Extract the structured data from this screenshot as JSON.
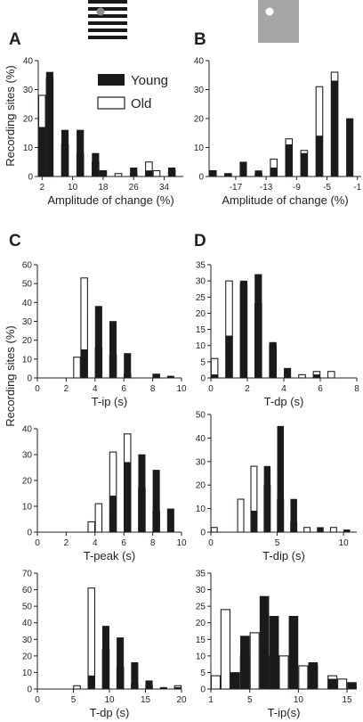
{
  "figure": {
    "shared_ylabel_top": "Recording sites (%)",
    "shared_ylabel_bottom": "Recording sites (%)",
    "legend": {
      "young": "Young",
      "old": "Old"
    },
    "colors": {
      "young": "#1a1a1a",
      "old": "#ffffff",
      "axis": "#231f20",
      "stimulus_gray": "#a6a6a6"
    },
    "stimuli": {
      "A": "black and white horizontal grating with gray dot",
      "B": "gray square with white dot"
    }
  },
  "chart_data": [
    {
      "id": "A",
      "panel_label": "A",
      "type": "bar",
      "xlabel": "Amplitude of change (%)",
      "xticks": [
        "2",
        "10",
        "18",
        "26",
        "34"
      ],
      "ylim": [
        0,
        40
      ],
      "yticks": [
        "0",
        "10",
        "20",
        "30",
        "40"
      ],
      "categories": [
        "2",
        "4",
        "6",
        "8",
        "10",
        "12",
        "14",
        "16",
        "18",
        "20",
        "22",
        "24",
        "26",
        "28",
        "30",
        "32",
        "34",
        "36",
        "38"
      ],
      "series": [
        {
          "name": "Old",
          "values": [
            28,
            34,
            0,
            11,
            0,
            8,
            0,
            5,
            2,
            0,
            1,
            0,
            1,
            0,
            5,
            2,
            0,
            2,
            0
          ]
        },
        {
          "name": "Young",
          "values": [
            17,
            36,
            0,
            16,
            0,
            16,
            0,
            8,
            2,
            0,
            0,
            0,
            3,
            0,
            2,
            0,
            0,
            3,
            0
          ]
        }
      ]
    },
    {
      "id": "B",
      "panel_label": "B",
      "type": "bar",
      "xlabel": "Amplitude of change (%)",
      "xticks": [
        "-17",
        "-13",
        "-9",
        "-5",
        "-1"
      ],
      "ylim": [
        0,
        40
      ],
      "yticks": [
        "0",
        "10",
        "20",
        "30",
        "40"
      ],
      "categories": [
        "-20",
        "-19",
        "-18",
        "-17",
        "-16",
        "-15",
        "-14",
        "-13",
        "-12",
        "-11",
        "-10",
        "-9",
        "-8",
        "-7",
        "-6",
        "-5",
        "-4",
        "-3",
        "-2",
        "-1"
      ],
      "series": [
        {
          "name": "Old",
          "values": [
            2,
            0,
            1,
            0,
            0,
            0,
            1,
            0,
            6,
            0,
            13,
            0,
            9,
            0,
            31,
            0,
            36,
            0,
            0,
            0
          ]
        },
        {
          "name": "Young",
          "values": [
            2,
            0,
            1,
            0,
            5,
            0,
            2,
            0,
            3,
            0,
            11,
            0,
            8,
            0,
            14,
            0,
            33,
            0,
            20,
            0
          ]
        }
      ]
    },
    {
      "id": "C1",
      "panel_label": "C",
      "type": "bar",
      "xlabel": "T-ip (s)",
      "xlim": [
        0,
        10
      ],
      "xticks": [
        "0",
        "2",
        "4",
        "6",
        "8",
        "10"
      ],
      "ylim": [
        0,
        60
      ],
      "yticks": [
        "0",
        "10",
        "20",
        "30",
        "40",
        "50",
        "60"
      ],
      "x": [
        0.25,
        0.75,
        1.25,
        1.75,
        2.25,
        2.75,
        3.25,
        3.75,
        4.25,
        4.75,
        5.25,
        5.75,
        6.25,
        6.75,
        7.25,
        7.75,
        8.25,
        8.75,
        9.25,
        9.75
      ],
      "series": [
        {
          "name": "Old",
          "values": [
            0,
            0,
            0,
            0,
            0,
            11,
            53,
            0,
            16,
            0,
            12,
            0,
            2,
            0,
            0,
            0,
            2,
            0,
            0,
            0
          ]
        },
        {
          "name": "Young",
          "values": [
            0,
            0,
            0,
            0,
            0,
            0,
            15,
            0,
            38,
            0,
            30,
            0,
            13,
            0,
            0,
            0,
            2,
            0,
            1,
            0
          ]
        }
      ]
    },
    {
      "id": "C2",
      "type": "bar",
      "xlabel": "T-peak (s)",
      "xlim": [
        0,
        10
      ],
      "xticks": [
        "0",
        "2",
        "4",
        "6",
        "8",
        "10"
      ],
      "ylim": [
        0,
        40
      ],
      "yticks": [
        "0",
        "10",
        "20",
        "30",
        "40"
      ],
      "x": [
        0.25,
        0.75,
        1.25,
        1.75,
        2.25,
        2.75,
        3.25,
        3.75,
        4.25,
        4.75,
        5.25,
        5.75,
        6.25,
        6.75,
        7.25,
        7.75,
        8.25,
        8.75,
        9.25,
        9.75
      ],
      "series": [
        {
          "name": "Old",
          "values": [
            0,
            0,
            0,
            0,
            0,
            0,
            0,
            4,
            11,
            0,
            31,
            0,
            38,
            0,
            17,
            0,
            8,
            0,
            0,
            0
          ]
        },
        {
          "name": "Young",
          "values": [
            0,
            0,
            0,
            0,
            0,
            0,
            0,
            0,
            0,
            0,
            14,
            0,
            27,
            0,
            30,
            0,
            24,
            0,
            9,
            0
          ]
        }
      ]
    },
    {
      "id": "C3",
      "type": "bar",
      "xlabel": "T-dp (s)",
      "xlim": [
        0,
        20
      ],
      "xticks": [
        "0",
        "5",
        "10",
        "15",
        "20"
      ],
      "ylim": [
        0,
        70
      ],
      "yticks": [
        "0",
        "10",
        "20",
        "30",
        "40",
        "50",
        "60",
        "70"
      ],
      "x": [
        0.5,
        1.5,
        2.5,
        3.5,
        4.5,
        5.5,
        6.5,
        7.5,
        8.5,
        9.5,
        10.5,
        11.5,
        12.5,
        13.5,
        14.5,
        15.5,
        16.5,
        17.5,
        18.5,
        19.5
      ],
      "series": [
        {
          "name": "Old",
          "values": [
            0,
            0,
            0,
            0,
            0,
            2,
            0,
            61,
            0,
            24,
            0,
            13,
            0,
            3,
            0,
            2,
            0,
            0,
            0,
            2
          ]
        },
        {
          "name": "Young",
          "values": [
            0,
            0,
            0,
            0,
            0,
            0,
            0,
            8,
            0,
            38,
            0,
            31,
            0,
            16,
            0,
            5,
            0,
            1,
            0,
            1
          ]
        }
      ]
    },
    {
      "id": "D1",
      "panel_label": "D",
      "type": "bar",
      "xlabel": "T-dp (s)",
      "xlim": [
        0,
        8
      ],
      "xticks": [
        "0",
        "2",
        "4",
        "6",
        "8"
      ],
      "ylim": [
        0,
        35
      ],
      "yticks": [
        "0",
        "5",
        "10",
        "15",
        "20",
        "25",
        "30",
        "35"
      ],
      "x": [
        0.2,
        0.6,
        1.0,
        1.4,
        1.8,
        2.2,
        2.6,
        3.0,
        3.4,
        3.8,
        4.2,
        4.6,
        5.0,
        5.4,
        5.8,
        6.2,
        6.6,
        7.0,
        7.4,
        7.8
      ],
      "series": [
        {
          "name": "Old",
          "values": [
            6,
            0,
            30,
            0,
            29,
            0,
            23,
            0,
            10,
            0,
            0,
            0,
            1,
            0,
            2,
            0,
            2,
            0,
            0,
            0
          ]
        },
        {
          "name": "Young",
          "values": [
            1,
            0,
            13,
            0,
            30,
            0,
            32,
            0,
            11,
            0,
            3,
            0,
            0,
            0,
            1,
            0,
            0,
            0,
            0,
            0
          ]
        }
      ]
    },
    {
      "id": "D2",
      "type": "bar",
      "xlabel": "T-dip (s)",
      "xlim": [
        0,
        11
      ],
      "xticks": [
        "0",
        "5",
        "10"
      ],
      "ylim": [
        0,
        50
      ],
      "yticks": [
        "0",
        "10",
        "20",
        "30",
        "40",
        "50"
      ],
      "x": [
        0.25,
        0.75,
        1.25,
        1.75,
        2.25,
        2.75,
        3.25,
        3.75,
        4.25,
        4.75,
        5.25,
        5.75,
        6.25,
        6.75,
        7.25,
        7.75,
        8.25,
        8.75,
        9.25,
        9.75,
        10.25,
        10.75
      ],
      "series": [
        {
          "name": "Old",
          "values": [
            2,
            0,
            0,
            0,
            14,
            0,
            28,
            0,
            20,
            0,
            14,
            0,
            4,
            0,
            2,
            0,
            0,
            0,
            2,
            0,
            0,
            0
          ]
        },
        {
          "name": "Young",
          "values": [
            0,
            0,
            0,
            0,
            0,
            0,
            9,
            0,
            28,
            0,
            45,
            0,
            14,
            0,
            0,
            0,
            2,
            0,
            0,
            0,
            1,
            0
          ]
        }
      ]
    },
    {
      "id": "D3",
      "type": "bar",
      "xlabel": "T-ip(s)",
      "xlim": [
        1,
        16
      ],
      "xticks": [
        "1",
        "5",
        "10",
        "15"
      ],
      "ylim": [
        0,
        35
      ],
      "yticks": [
        "0",
        "5",
        "10",
        "15",
        "20",
        "25",
        "30",
        "35"
      ],
      "x": [
        1.5,
        2.5,
        3.5,
        4.5,
        5.5,
        6.5,
        7.5,
        8.5,
        9.5,
        10.5,
        11.5,
        12.5,
        13.5,
        14.5,
        15.5
      ],
      "series": [
        {
          "name": "Old",
          "values": [
            4,
            24,
            0,
            10,
            17,
            0,
            10,
            10,
            0,
            7,
            7,
            0,
            4,
            3,
            0
          ]
        },
        {
          "name": "Young",
          "values": [
            0,
            0,
            5,
            16,
            0,
            28,
            22,
            0,
            22,
            0,
            8,
            0,
            3,
            0,
            2
          ]
        }
      ]
    }
  ]
}
